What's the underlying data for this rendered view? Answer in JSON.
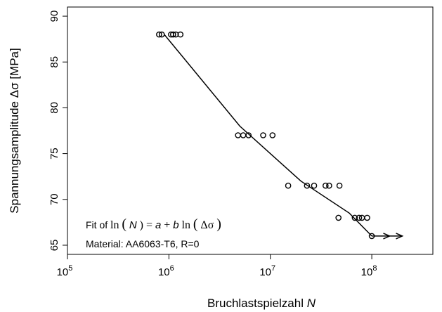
{
  "chart_data": {
    "type": "scatter",
    "xlabel": "Bruchlastspielzahl",
    "xlabel_var": "N",
    "ylabel": "Spannungsamplitude Δσ [MPa]",
    "xscale": "log",
    "xlim": [
      100000.0,
      400000000.0
    ],
    "ylim": [
      64,
      91
    ],
    "x_ticks": [
      {
        "value": 100000,
        "base": "10",
        "exp": "5"
      },
      {
        "value": 1000000,
        "base": "10",
        "exp": "6"
      },
      {
        "value": 10000000,
        "base": "10",
        "exp": "7"
      },
      {
        "value": 100000000,
        "base": "10",
        "exp": "8"
      }
    ],
    "y_ticks": [
      65,
      70,
      75,
      80,
      85,
      90
    ],
    "series": [
      {
        "marker": "open-circle",
        "points": [
          {
            "x": 800000,
            "y": 88
          },
          {
            "x": 850000,
            "y": 88
          },
          {
            "x": 1050000,
            "y": 88
          },
          {
            "x": 1100000,
            "y": 88
          },
          {
            "x": 1170000,
            "y": 88
          },
          {
            "x": 1300000,
            "y": 88
          },
          {
            "x": 4800000,
            "y": 77
          },
          {
            "x": 5400000,
            "y": 77
          },
          {
            "x": 6100000,
            "y": 77
          },
          {
            "x": 8500000,
            "y": 77
          },
          {
            "x": 10500000,
            "y": 77
          },
          {
            "x": 15000000,
            "y": 71.5
          },
          {
            "x": 23000000,
            "y": 71.5
          },
          {
            "x": 27000000,
            "y": 71.5
          },
          {
            "x": 35000000,
            "y": 71.5
          },
          {
            "x": 38000000,
            "y": 71.5
          },
          {
            "x": 48000000,
            "y": 71.5
          },
          {
            "x": 47000000,
            "y": 68
          },
          {
            "x": 68000000,
            "y": 68
          },
          {
            "x": 75000000,
            "y": 68
          },
          {
            "x": 80000000,
            "y": 68
          },
          {
            "x": 90000000,
            "y": 68
          },
          {
            "x": 100000000,
            "y": 66
          }
        ]
      }
    ],
    "fit_line": [
      {
        "x": 900000,
        "y": 88
      },
      {
        "x": 5000000,
        "y": 78
      },
      {
        "x": 20000000,
        "y": 72
      },
      {
        "x": 60000000,
        "y": 68.5
      },
      {
        "x": 100000000,
        "y": 66
      }
    ],
    "runout": {
      "from": {
        "x": 100000000,
        "y": 66
      },
      "to": {
        "x": 200000000,
        "y": 66
      },
      "arrowheads_at": [
        150000000,
        200000000
      ]
    },
    "annotations": {
      "fit_prefix": "Fit of ",
      "fit_formula_parts": [
        "ln",
        "(",
        "N",
        ") = ",
        "a",
        " + ",
        "b",
        "ln",
        "(",
        "Δσ",
        ")"
      ],
      "material": "Material: AA6063-T6, R=0"
    },
    "grid": false,
    "legend": "none"
  }
}
